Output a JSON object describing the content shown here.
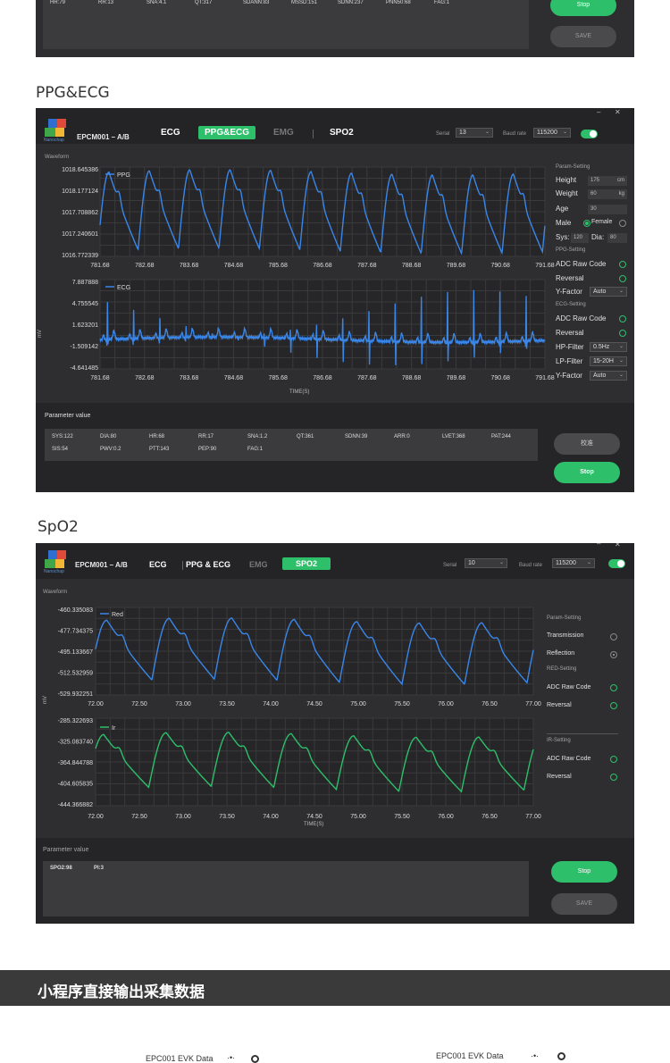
{
  "top_partial": {
    "values": [
      "HR:79",
      "RR:13",
      "SNA:4.1",
      "QT:317",
      "SDANN:83",
      "MSSD:151",
      "SDNN:237",
      "PNN50:68",
      "FAG:1"
    ],
    "stop_label": "Stop",
    "save_label": "SAVE"
  },
  "ppg_section": {
    "section_title": "PPG&ECG",
    "app_name": "EPCM001 – A/B",
    "logo_text": "Nanochap",
    "tabs": [
      {
        "label": "ECG",
        "state": "normal"
      },
      {
        "label": "PPG&ECG",
        "state": "active"
      },
      {
        "label": "EMG",
        "state": "dim"
      },
      {
        "label": "SPO2",
        "state": "normal"
      }
    ],
    "serial_label": "Serial",
    "serial_value": "13",
    "baud_label": "Baud rate",
    "baud_value": "115200",
    "window_controls": [
      "–",
      "✕"
    ],
    "waveform_label": "Waveform",
    "mv_label": "mV",
    "time_label": "TIME(S)",
    "param_setting": {
      "header": "Param-Setting",
      "height_label": "Height",
      "height_value": "175",
      "height_unit": "cm",
      "weight_label": "Weight",
      "weight_value": "60",
      "weight_unit": "kg",
      "age_label": "Age",
      "age_value": "30",
      "male_label": "Male",
      "female_label": "Female",
      "sys_label": "Sys:",
      "sys_value": "120",
      "dia_label": "Dia:",
      "dia_value": "80"
    },
    "ppg_setting": {
      "header": "PPG-Setting",
      "adc_label": "ADC Raw Code",
      "reversal_label": "Reversal",
      "yfactor_label": "Y-Factor",
      "yfactor_value": "Auto"
    },
    "ecg_setting": {
      "header": "ECG-Setting",
      "adc_label": "ADC Raw Code",
      "reversal_label": "Reversal",
      "hp_label": "HP-Filter",
      "hp_value": "0.5Hz",
      "lp_label": "LP-Filter",
      "lp_value": "15-20H",
      "yfactor_label": "Y-Factor",
      "yfactor_value": "Auto"
    },
    "param_value_label": "Parameter value",
    "values_row1": [
      "SYS:122",
      "DIA:80",
      "HR:68",
      "RR:17",
      "SNA:1.2",
      "QT:361",
      "SDNN:39",
      "ARR:0",
      "LVET:368",
      "PAT:244"
    ],
    "values_row2": [
      "SIS:54",
      "PWV:0.2",
      "PTT:143",
      "PEP:90",
      "FAG:1"
    ],
    "calibrate_label": "校准",
    "stop_label": "Stop"
  },
  "spo2_section": {
    "section_title": "SpO2",
    "app_name": "EPCM001 – A/B",
    "logo_text": "Nanochap",
    "tabs": [
      {
        "label": "ECG",
        "state": "normal"
      },
      {
        "label": "PPG & ECG",
        "state": "normal"
      },
      {
        "label": "EMG",
        "state": "dim"
      },
      {
        "label": "SPO2",
        "state": "active"
      }
    ],
    "serial_label": "Serial",
    "serial_value": "10",
    "baud_label": "Baud rate",
    "baud_value": "115200",
    "window_controls": [
      "–",
      "✕"
    ],
    "waveform_label": "Waveform",
    "mv_label": "mV",
    "time_label": "TIME(S)",
    "param_setting_header": "Param-Setting",
    "transmission_label": "Transmission",
    "reflection_label": "Reflection",
    "red_setting_header": "RED-Setting",
    "red_adc_label": "ADC Raw Code",
    "red_reversal_label": "Reversal",
    "ir_setting_header": "IR-Setting",
    "ir_adc_label": "ADC Raw Code",
    "ir_reversal_label": "Reversal",
    "param_value_label": "Parameter value",
    "values": [
      "SPO2:98",
      "PI:3"
    ],
    "stop_label": "Stop",
    "save_label": "SAVE"
  },
  "banner": {
    "text": "小程序直接输出采集数据"
  },
  "mini_apps": [
    {
      "title": "EPC001 EVK Data",
      "dots": "·•·"
    },
    {
      "title": "EPC001 EVK Data",
      "dots": "·•·"
    }
  ],
  "chart_data": [
    {
      "type": "line",
      "series": [
        {
          "name": "PPG"
        }
      ],
      "yticks": [
        "1018.645386",
        "1018.177124",
        "1017.708862",
        "1017.240601",
        "1016.772339"
      ],
      "xticks": [
        "781.68",
        "782.68",
        "783.68",
        "784.68",
        "785.68",
        "786.68",
        "787.68",
        "788.68",
        "789.68",
        "790.68",
        "791.68"
      ],
      "xlim": [
        781.68,
        791.68
      ],
      "ylim": [
        1016.772339,
        1018.645386
      ],
      "color": "#3a86e8",
      "shape": "ppg",
      "beats": 11,
      "grid": true
    },
    {
      "type": "line",
      "series": [
        {
          "name": "ECG"
        }
      ],
      "yticks": [
        "7.887888",
        "4.755545",
        "1.623201",
        "-1.509142",
        "-4.641485"
      ],
      "xticks": [
        "781.68",
        "782.68",
        "783.68",
        "784.68",
        "785.68",
        "786.68",
        "787.68",
        "788.68",
        "789.68",
        "790.68",
        "791.68"
      ],
      "xlim": [
        781.68,
        791.68
      ],
      "ylim": [
        -4.641485,
        7.887888
      ],
      "color": "#3a86e8",
      "shape": "ecg",
      "beats": 17,
      "grid": true
    },
    {
      "type": "line",
      "series": [
        {
          "name": "Red"
        }
      ],
      "yticks": [
        "-460.335083",
        "-477.734375",
        "-495.133667",
        "-512.532959",
        "-529.932251"
      ],
      "xticks": [
        "72.00",
        "72.50",
        "73.00",
        "73.50",
        "74.00",
        "74.50",
        "75.00",
        "75.50",
        "76.00",
        "76.50",
        "77.00"
      ],
      "xlim": [
        72.0,
        77.0
      ],
      "ylim": [
        -529.932251,
        -460.335083
      ],
      "color": "#3a86e8",
      "shape": "ppg",
      "beats": 7,
      "grid": true
    },
    {
      "type": "line",
      "series": [
        {
          "name": "Ir"
        }
      ],
      "yticks": [
        "-285.322693",
        "-325.083740",
        "-364.844788",
        "-404.605835",
        "-444.366882"
      ],
      "xticks": [
        "72.00",
        "72.50",
        "73.00",
        "73.50",
        "74.00",
        "74.50",
        "75.00",
        "75.50",
        "76.00",
        "76.50",
        "77.00"
      ],
      "xlim": [
        72.0,
        77.0
      ],
      "ylim": [
        -444.366882,
        -285.322693
      ],
      "color": "#2dbf6a",
      "shape": "ppg",
      "beats": 7,
      "grid": true
    }
  ]
}
